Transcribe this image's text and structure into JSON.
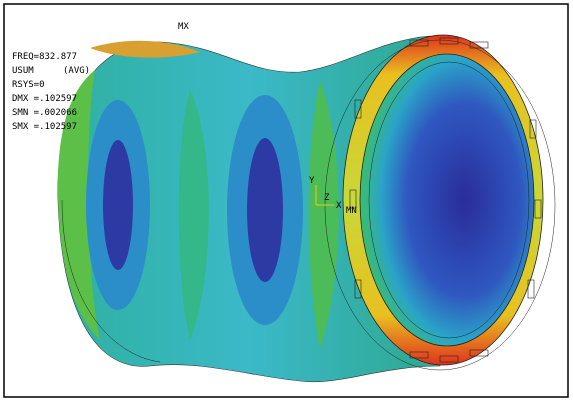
{
  "legend": {
    "freq": "FREQ=832.877",
    "result": "USUM",
    "avg": "(AVG)",
    "rsys": "RSYS=0",
    "dmx": "DMX =.102597",
    "smn": "SMN =.002066",
    "smx": "SMX =.102597"
  },
  "markers": {
    "max": "MX",
    "min": "MN"
  },
  "triad": {
    "y": "Y",
    "x": "X",
    "z": "Z"
  }
}
